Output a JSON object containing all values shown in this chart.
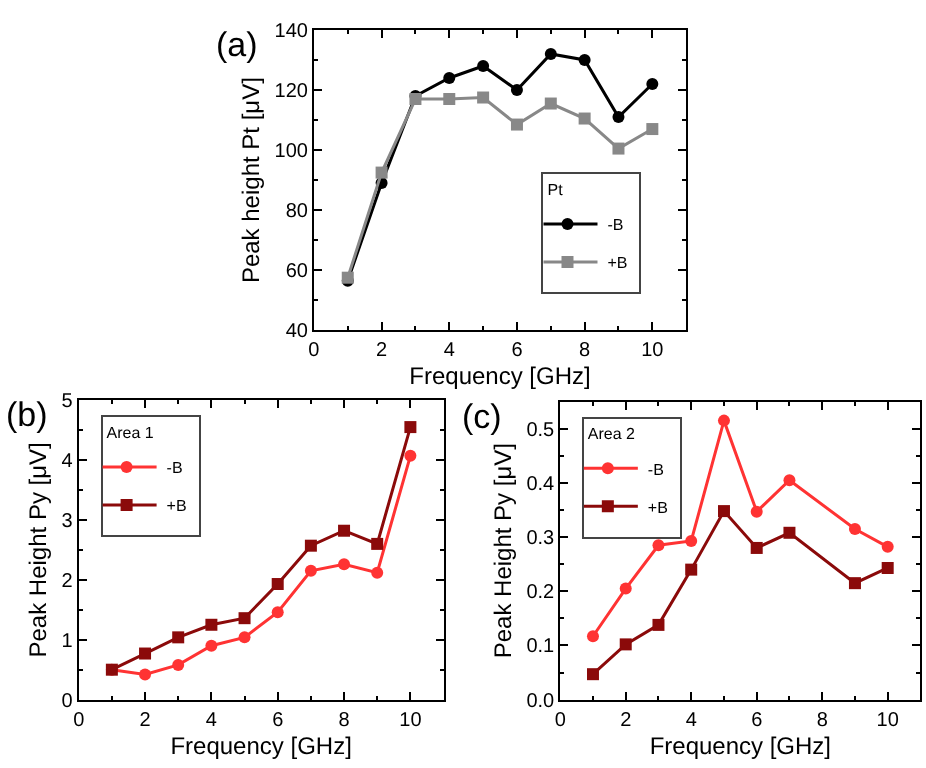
{
  "chart_data": [
    {
      "type": "line",
      "annotations": [
        "(a)"
      ],
      "xlabel": "Frequency [GHz]",
      "ylabel": "Peak height Pt [μV]",
      "legend_title": "Pt",
      "legend": "bottom right",
      "x": [
        1,
        2,
        3,
        4,
        5,
        6,
        7,
        8,
        9,
        10
      ],
      "xlim": [
        0,
        11
      ],
      "xticks": [
        0,
        2,
        4,
        6,
        8,
        10
      ],
      "ylim": [
        40,
        140
      ],
      "yticks": [
        40,
        60,
        80,
        100,
        120,
        140
      ],
      "series": [
        {
          "name": "-B",
          "color": "#000000",
          "marker": "circle",
          "values": [
            56.5,
            89,
            118,
            124,
            128,
            120,
            132,
            130,
            111,
            122
          ]
        },
        {
          "name": "+B",
          "color": "#888888",
          "marker": "square",
          "values": [
            57.5,
            92.5,
            117,
            117,
            117.5,
            108.5,
            115.5,
            110.5,
            100.5,
            107
          ]
        }
      ]
    },
    {
      "type": "line",
      "annotations": [
        "(b)"
      ],
      "xlabel": "Frequency [GHz]",
      "ylabel": "Peak Height Py [μV]",
      "legend_title": "Area 1",
      "legend": "top left",
      "x": [
        1,
        2,
        3,
        4,
        5,
        6,
        7,
        8,
        9,
        10
      ],
      "xlim": [
        0,
        11
      ],
      "xticks": [
        0,
        2,
        4,
        6,
        8,
        10
      ],
      "ylim": [
        0,
        5
      ],
      "yticks": [
        0,
        1,
        2,
        3,
        4,
        5
      ],
      "series": [
        {
          "name": "-B",
          "color": "#ff3333",
          "marker": "circle",
          "values": [
            0.5,
            0.42,
            0.58,
            0.9,
            1.04,
            1.46,
            2.15,
            2.26,
            2.12,
            4.07
          ]
        },
        {
          "name": "+B",
          "color": "#8b0a0a",
          "marker": "square",
          "values": [
            0.5,
            0.77,
            1.04,
            1.25,
            1.36,
            1.93,
            2.57,
            2.82,
            2.6,
            4.55
          ]
        }
      ]
    },
    {
      "type": "line",
      "annotations": [
        "(c)"
      ],
      "xlabel": "Frequency [GHz]",
      "ylabel": "Peak Height Py [μV]",
      "legend_title": "Area 2",
      "legend": "top left",
      "x": [
        1,
        2,
        3,
        4,
        5,
        6,
        7,
        9,
        10
      ],
      "xlim": [
        0,
        11
      ],
      "xticks": [
        0,
        2,
        4,
        6,
        8,
        10
      ],
      "ylim": [
        0,
        0.55
      ],
      "yticks": [
        {
          "value": 0,
          "label": "0.0"
        },
        0.1,
        0.2,
        0.3,
        0.4,
        0.5
      ],
      "series": [
        {
          "name": "-B",
          "color": "#ff3333",
          "marker": "circle",
          "values": [
            0.117,
            0.205,
            0.285,
            0.293,
            0.515,
            0.347,
            0.405,
            0.315,
            0.282
          ]
        },
        {
          "name": "+B",
          "color": "#8b0a0a",
          "marker": "square",
          "values": [
            0.047,
            0.102,
            0.138,
            0.24,
            0.348,
            0.28,
            0.308,
            0.215,
            0.243
          ]
        }
      ]
    }
  ]
}
